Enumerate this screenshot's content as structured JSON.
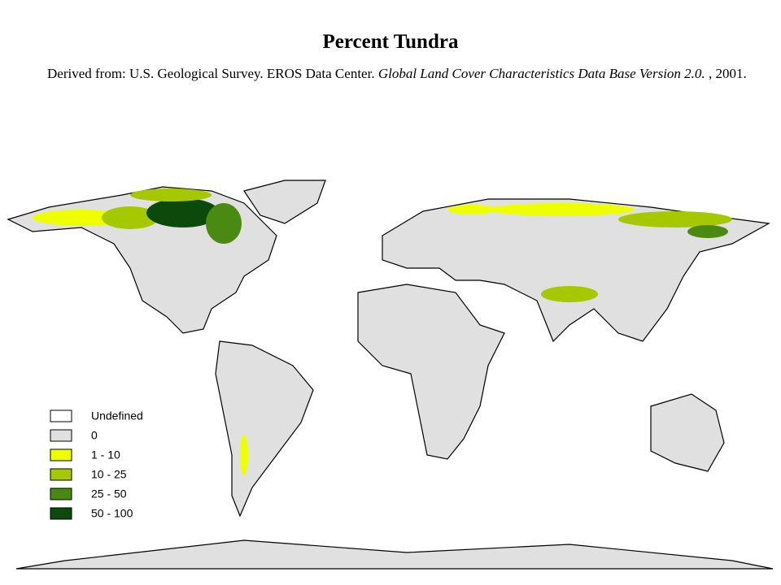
{
  "title": "Percent Tundra",
  "source": {
    "prefix": "Derived from: U.S. Geological Survey. EROS Data Center. ",
    "title": "Global Land Cover Characteristics Data Base Version 2.0.",
    "suffix": " , 2001."
  },
  "legend": [
    {
      "label": "Undefined",
      "color": "#ffffff"
    },
    {
      "label": "0",
      "color": "#e0e0e0"
    },
    {
      "label": "1 - 10",
      "color": "#eeff00"
    },
    {
      "label": "10 - 25",
      "color": "#a6c800"
    },
    {
      "label": "25 - 50",
      "color": "#4a8a12"
    },
    {
      "label": "50 - 100",
      "color": "#0b4a0b"
    }
  ]
}
